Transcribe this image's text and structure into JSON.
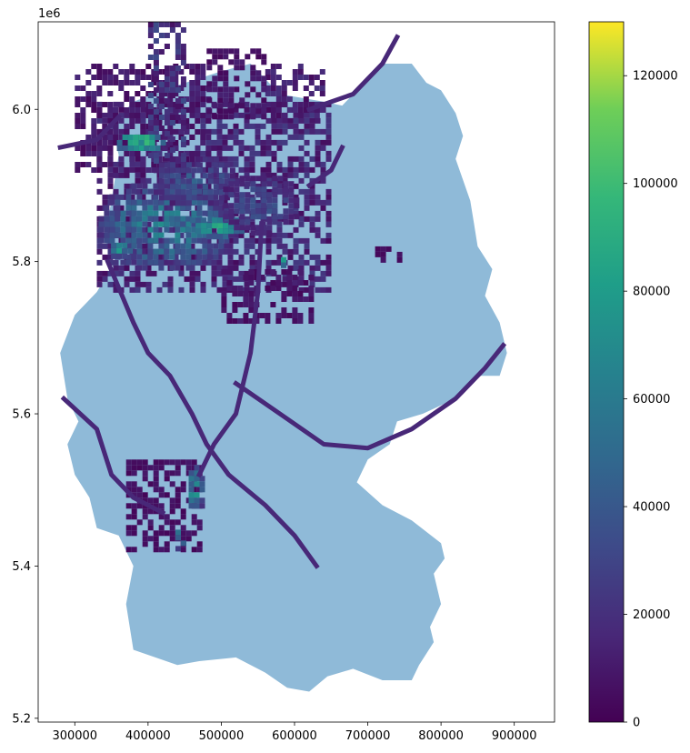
{
  "chart_data": {
    "type": "heatmap",
    "title": "",
    "xlabel": "",
    "ylabel": "",
    "y_offset_label": "1e6",
    "xlim": [
      250000,
      955000
    ],
    "ylim": [
      5195000,
      6115000
    ],
    "x_ticks": [
      {
        "value": 300000,
        "label": "300000"
      },
      {
        "value": 400000,
        "label": "400000"
      },
      {
        "value": 500000,
        "label": "500000"
      },
      {
        "value": 600000,
        "label": "600000"
      },
      {
        "value": 700000,
        "label": "700000"
      },
      {
        "value": 800000,
        "label": "800000"
      },
      {
        "value": 900000,
        "label": "900000"
      }
    ],
    "y_ticks": [
      {
        "value": 5200000,
        "label": "5.2"
      },
      {
        "value": 5400000,
        "label": "5.4"
      },
      {
        "value": 5600000,
        "label": "5.6"
      },
      {
        "value": 5800000,
        "label": "5.8"
      },
      {
        "value": 6000000,
        "label": "6.0"
      }
    ],
    "colorbar": {
      "colormap": "viridis",
      "min": 0,
      "max": 130000,
      "ticks": [
        {
          "value": 0,
          "label": "0"
        },
        {
          "value": 20000,
          "label": "20000"
        },
        {
          "value": 40000,
          "label": "40000"
        },
        {
          "value": 60000,
          "label": "60000"
        },
        {
          "value": 80000,
          "label": "80000"
        },
        {
          "value": 100000,
          "label": "100000"
        },
        {
          "value": 120000,
          "label": "120000"
        }
      ]
    },
    "basemap_color": "#8fbad8",
    "outline_points": [
      [
        380000,
        6010000
      ],
      [
        435000,
        6030000
      ],
      [
        500000,
        6050000
      ],
      [
        540000,
        6060000
      ],
      [
        560000,
        6040000
      ],
      [
        580000,
        6020000
      ],
      [
        640000,
        6010000
      ],
      [
        665000,
        6005000
      ],
      [
        700000,
        6040000
      ],
      [
        720000,
        6060000
      ],
      [
        760000,
        6060000
      ],
      [
        780000,
        6035000
      ],
      [
        800000,
        6025000
      ],
      [
        820000,
        5995000
      ],
      [
        830000,
        5965000
      ],
      [
        820000,
        5935000
      ],
      [
        840000,
        5880000
      ],
      [
        845000,
        5850000
      ],
      [
        850000,
        5820000
      ],
      [
        870000,
        5790000
      ],
      [
        860000,
        5755000
      ],
      [
        880000,
        5720000
      ],
      [
        890000,
        5680000
      ],
      [
        880000,
        5650000
      ],
      [
        850000,
        5650000
      ],
      [
        820000,
        5620000
      ],
      [
        775000,
        5600000
      ],
      [
        740000,
        5590000
      ],
      [
        730000,
        5560000
      ],
      [
        700000,
        5540000
      ],
      [
        685000,
        5510000
      ],
      [
        720000,
        5480000
      ],
      [
        760000,
        5460000
      ],
      [
        800000,
        5430000
      ],
      [
        805000,
        5410000
      ],
      [
        790000,
        5390000
      ],
      [
        800000,
        5350000
      ],
      [
        785000,
        5320000
      ],
      [
        790000,
        5300000
      ],
      [
        770000,
        5270000
      ],
      [
        760000,
        5250000
      ],
      [
        720000,
        5250000
      ],
      [
        680000,
        5265000
      ],
      [
        645000,
        5255000
      ],
      [
        620000,
        5235000
      ],
      [
        590000,
        5240000
      ],
      [
        560000,
        5260000
      ],
      [
        520000,
        5280000
      ],
      [
        470000,
        5275000
      ],
      [
        440000,
        5270000
      ],
      [
        410000,
        5280000
      ],
      [
        380000,
        5290000
      ],
      [
        370000,
        5350000
      ],
      [
        380000,
        5400000
      ],
      [
        360000,
        5440000
      ],
      [
        330000,
        5450000
      ],
      [
        320000,
        5490000
      ],
      [
        300000,
        5520000
      ],
      [
        290000,
        5560000
      ],
      [
        305000,
        5590000
      ],
      [
        290000,
        5620000
      ],
      [
        280000,
        5680000
      ],
      [
        300000,
        5730000
      ],
      [
        330000,
        5760000
      ],
      [
        355000,
        5800000
      ],
      [
        340000,
        5830000
      ],
      [
        350000,
        5880000
      ],
      [
        360000,
        5940000
      ],
      [
        350000,
        5980000
      ],
      [
        370000,
        6000000
      ]
    ],
    "lines": [
      [
        [
          345000,
          5800000
        ],
        [
          380000,
          5720000
        ],
        [
          400000,
          5680000
        ],
        [
          430000,
          5650000
        ],
        [
          460000,
          5600000
        ],
        [
          480000,
          5560000
        ],
        [
          510000,
          5520000
        ],
        [
          560000,
          5480000
        ],
        [
          600000,
          5440000
        ],
        [
          630000,
          5400000
        ]
      ],
      [
        [
          555000,
          5850000
        ],
        [
          550000,
          5760000
        ],
        [
          540000,
          5680000
        ],
        [
          520000,
          5600000
        ],
        [
          490000,
          5560000
        ],
        [
          470000,
          5520000
        ]
      ],
      [
        [
          520000,
          5640000
        ],
        [
          580000,
          5600000
        ],
        [
          640000,
          5560000
        ],
        [
          700000,
          5555000
        ],
        [
          760000,
          5580000
        ],
        [
          820000,
          5620000
        ],
        [
          860000,
          5660000
        ],
        [
          885000,
          5690000
        ]
      ],
      [
        [
          285000,
          5620000
        ],
        [
          330000,
          5580000
        ],
        [
          350000,
          5520000
        ],
        [
          380000,
          5490000
        ],
        [
          420000,
          5470000
        ]
      ],
      [
        [
          620000,
          6000000
        ],
        [
          680000,
          6020000
        ],
        [
          720000,
          6060000
        ],
        [
          740000,
          6095000
        ]
      ],
      [
        [
          620000,
          5900000
        ],
        [
          650000,
          5920000
        ],
        [
          665000,
          5950000
        ]
      ],
      [
        [
          280000,
          5950000
        ],
        [
          330000,
          5960000
        ],
        [
          360000,
          5990000
        ]
      ]
    ],
    "hotspots": [
      {
        "x": 420000,
        "y": 5850000,
        "rx": 95000,
        "ry": 60000,
        "value": 60000
      },
      {
        "x": 490000,
        "y": 5850000,
        "rx": 40000,
        "ry": 15000,
        "value": 95000
      },
      {
        "x": 385000,
        "y": 5960000,
        "rx": 35000,
        "ry": 14000,
        "value": 100000
      },
      {
        "x": 460000,
        "y": 5910000,
        "rx": 60000,
        "ry": 35000,
        "value": 40000
      },
      {
        "x": 550000,
        "y": 5880000,
        "rx": 55000,
        "ry": 40000,
        "value": 35000
      },
      {
        "x": 360000,
        "y": 5820000,
        "rx": 18000,
        "ry": 12000,
        "value": 75000
      },
      {
        "x": 580000,
        "y": 5805000,
        "rx": 6000,
        "ry": 8000,
        "value": 125000
      },
      {
        "x": 460000,
        "y": 5500000,
        "rx": 12000,
        "ry": 40000,
        "value": 70000
      },
      {
        "x": 440000,
        "y": 5440000,
        "rx": 10000,
        "ry": 15000,
        "value": 60000
      }
    ],
    "regions": [
      {
        "x0": 330000,
        "x1": 650000,
        "y0": 5760000,
        "y1": 6010000,
        "value": 15000
      },
      {
        "x0": 300000,
        "x1": 480000,
        "y0": 5920000,
        "y1": 6060000,
        "value": 10000
      },
      {
        "x0": 400000,
        "x1": 450000,
        "y0": 5920000,
        "y1": 6115000,
        "value": 20000
      },
      {
        "x0": 560000,
        "x1": 640000,
        "y0": 5990000,
        "y1": 6060000,
        "value": 12000
      },
      {
        "x0": 480000,
        "x1": 560000,
        "y0": 5990000,
        "y1": 6080000,
        "value": 8000
      },
      {
        "x0": 500000,
        "x1": 620000,
        "y0": 5720000,
        "y1": 5790000,
        "value": 8000
      },
      {
        "x0": 370000,
        "x1": 470000,
        "y0": 5420000,
        "y1": 5540000,
        "value": 6000
      },
      {
        "x0": 710000,
        "x1": 740000,
        "y0": 5800000,
        "y1": 5820000,
        "value": 5000
      }
    ]
  }
}
